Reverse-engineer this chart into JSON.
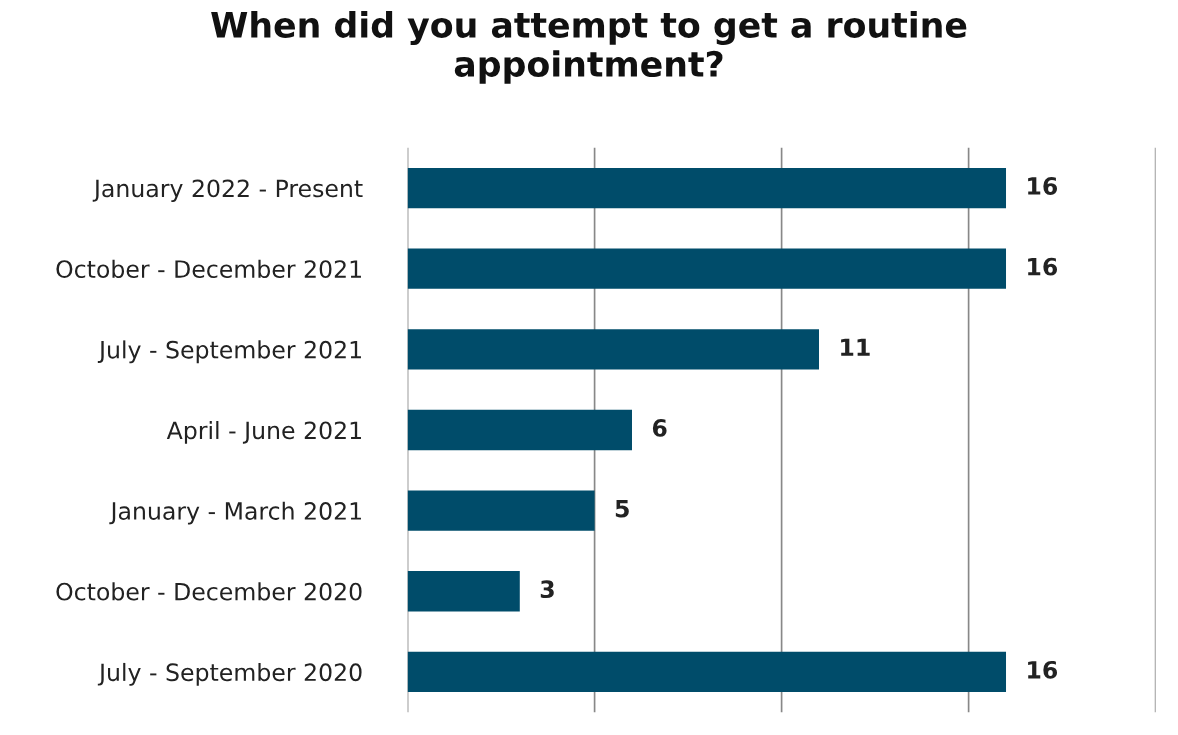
{
  "chart_data": {
    "type": "bar",
    "orientation": "horizontal",
    "title": "When did you attempt to get a routine\nappointment?",
    "categories": [
      "January 2022 - Present",
      "October - December 2021",
      "July - September 2021",
      "April - June 2021",
      "January - March 2021",
      "October - December 2020",
      "July - September 2020"
    ],
    "values": [
      16,
      16,
      11,
      6,
      5,
      3,
      16
    ],
    "color": "#004c6a",
    "data_labels": true,
    "xlim": [
      0,
      20
    ],
    "xticks": [
      {
        "value": 0,
        "label": null
      },
      {
        "value": 5,
        "label": null
      },
      {
        "value": 10,
        "label": null
      },
      {
        "value": 15,
        "label": null
      },
      {
        "value": 20,
        "label": null
      }
    ],
    "grid": "x",
    "tick_labels": "y"
  }
}
